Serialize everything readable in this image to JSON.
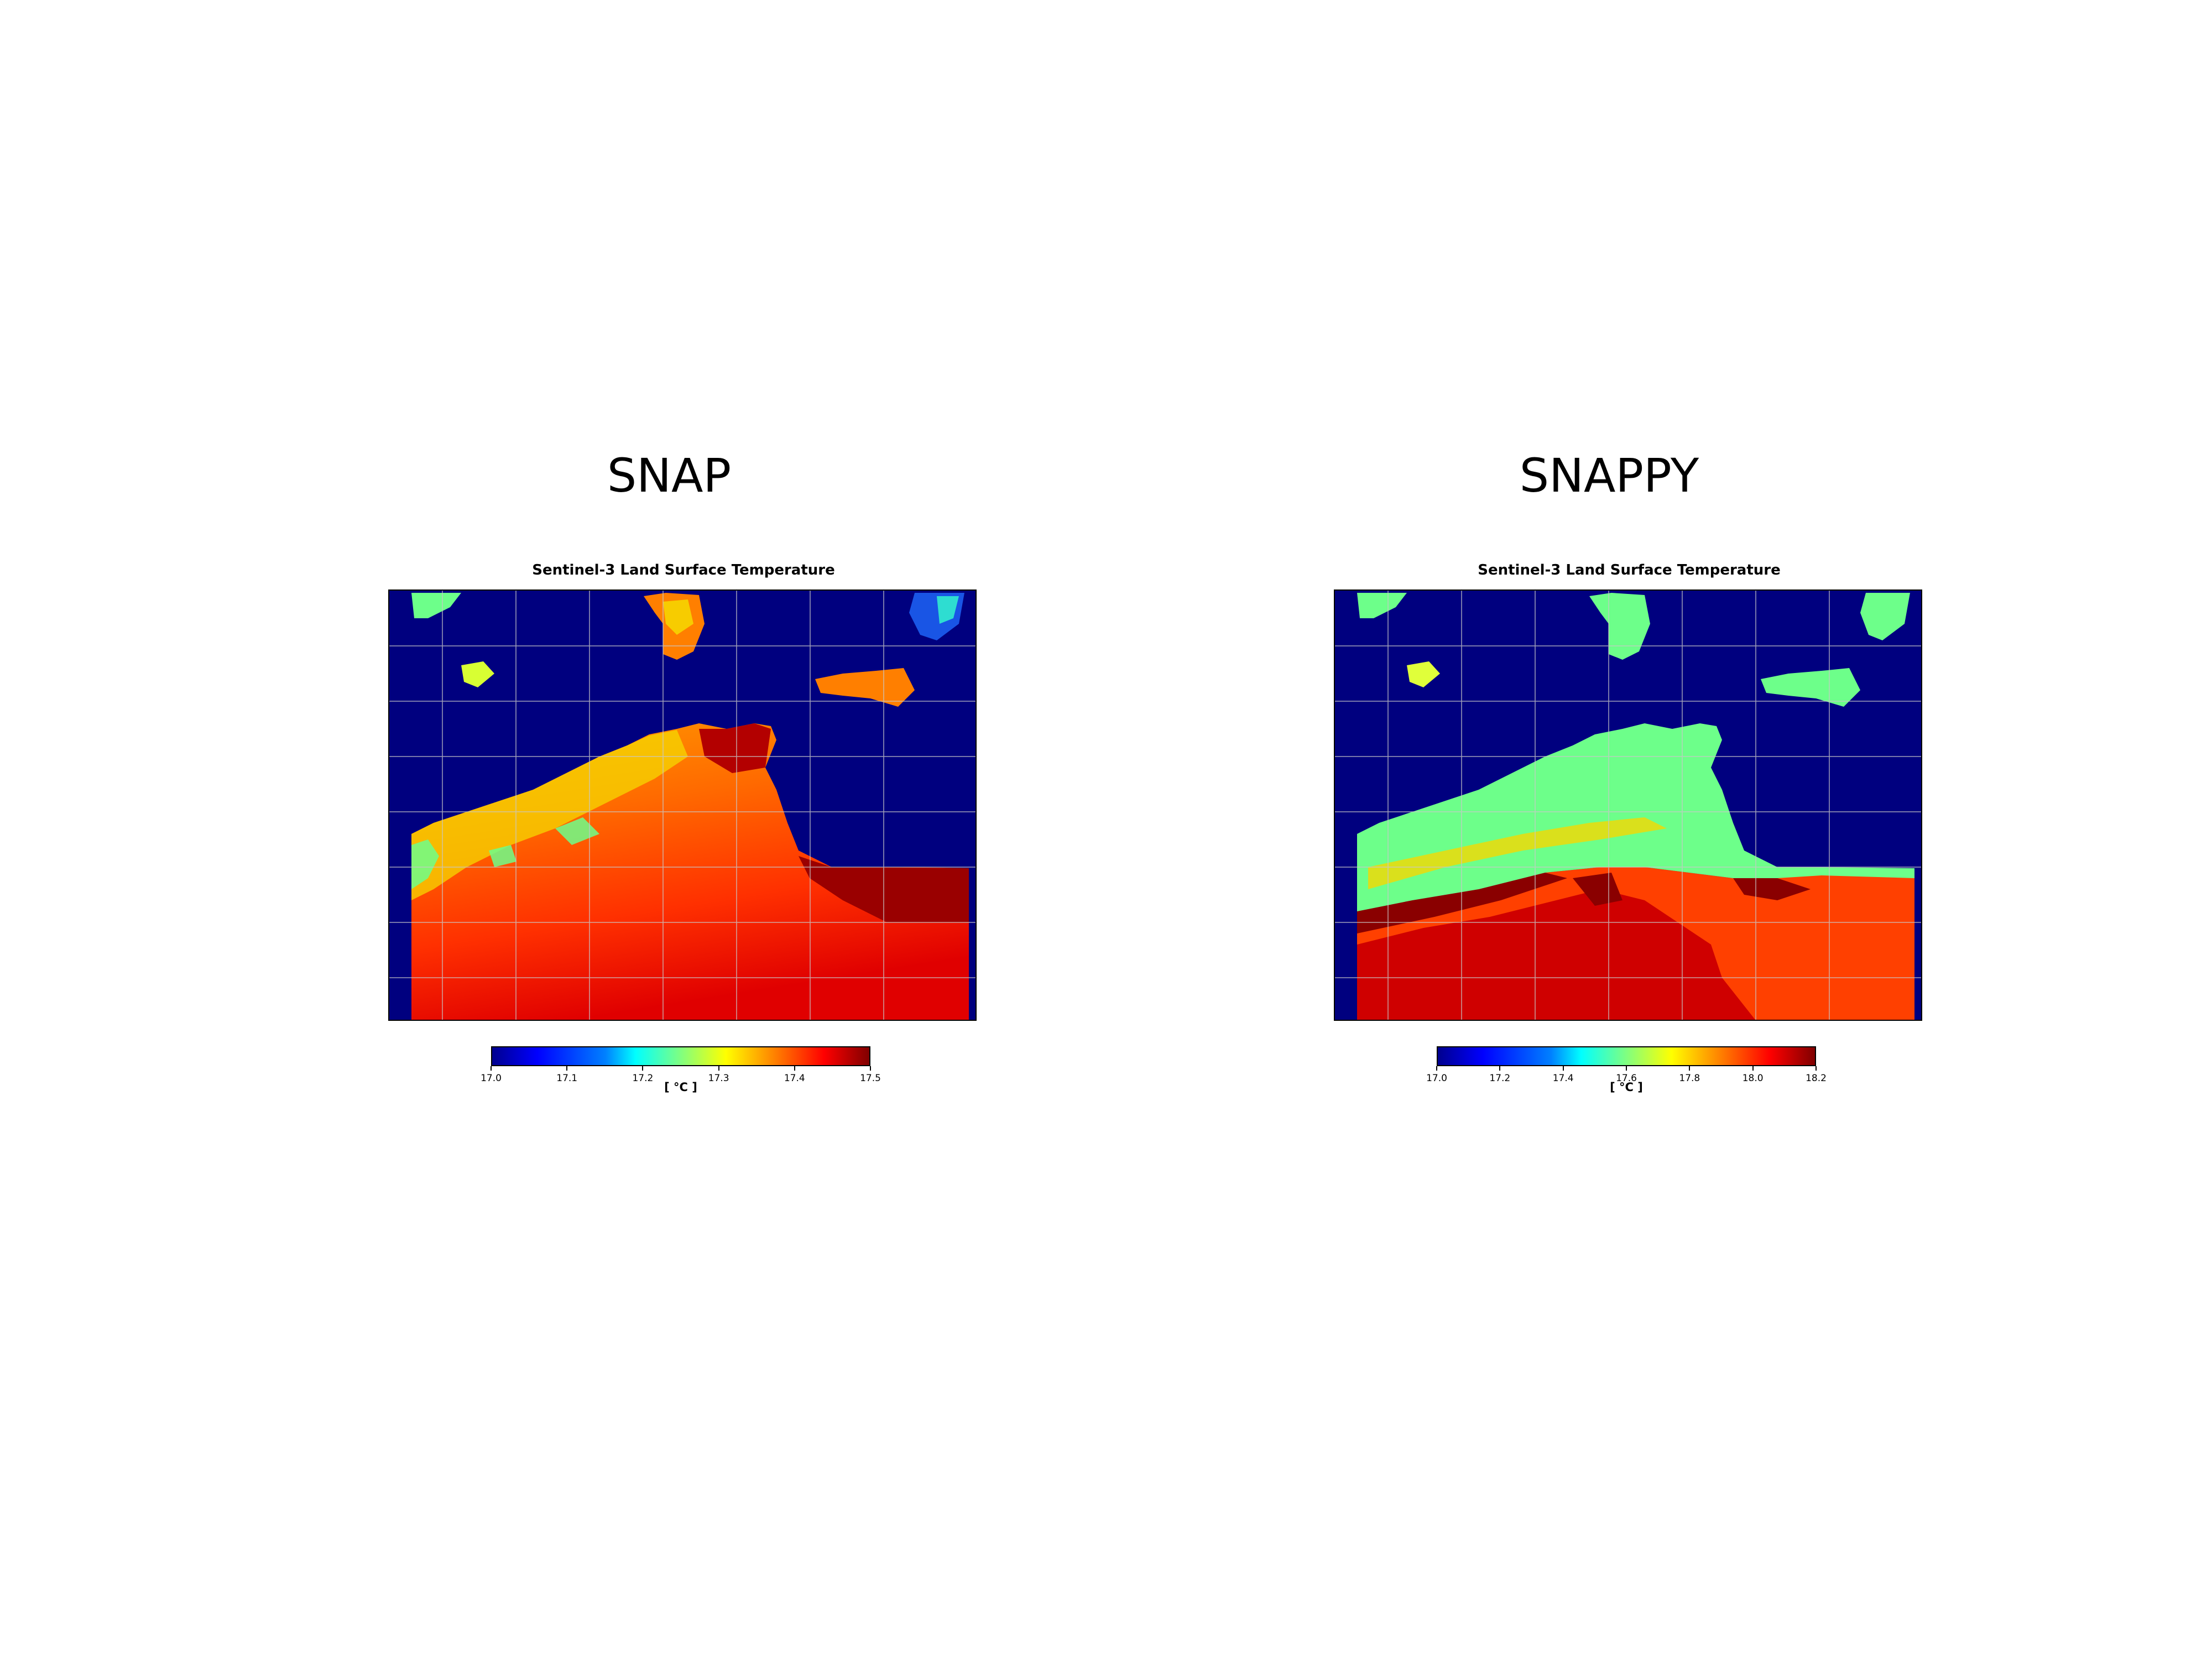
{
  "panels": [
    {
      "heading": "SNAP",
      "map_title": "Sentinel-3 Land Surface Temperature",
      "colorbar": {
        "colormap": "jet",
        "min": 17.0,
        "max": 17.5,
        "ticks": [
          "17.0",
          "17.1",
          "17.2",
          "17.3",
          "17.4",
          "17.5"
        ],
        "unit": "[ °C ]"
      },
      "sea_color": "#00007f",
      "gridlines": true
    },
    {
      "heading": "SNAPPY",
      "map_title": "Sentinel-3 Land Surface Temperature",
      "colorbar": {
        "colormap": "jet",
        "min": 17.0,
        "max": 18.2,
        "ticks": [
          "17.0",
          "17.2",
          "17.4",
          "17.6",
          "17.8",
          "18.0",
          "18.2"
        ],
        "unit": "[ °C ]"
      },
      "sea_color": "#00007f",
      "gridlines": true
    }
  ]
}
